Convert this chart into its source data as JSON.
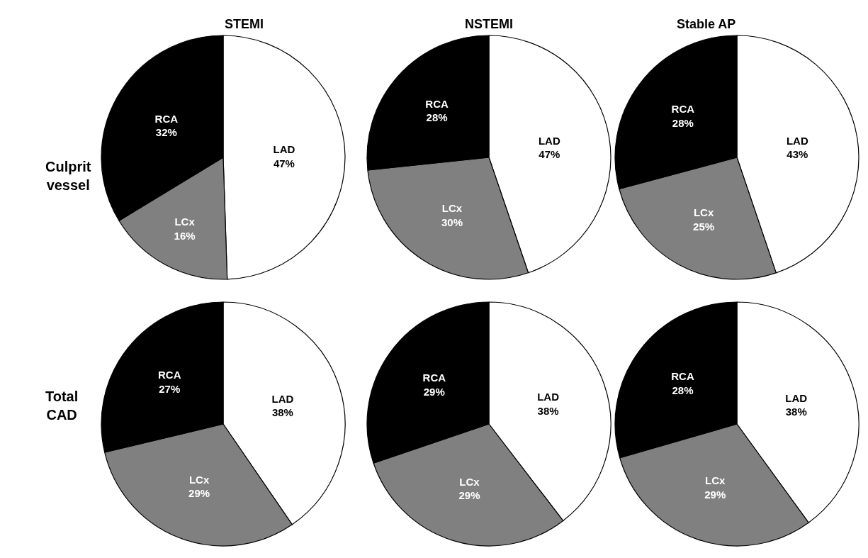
{
  "chart_data": [
    {
      "type": "pie",
      "title": "STEMI",
      "annotations": [
        "Culprit vessel"
      ],
      "categories": [
        "LAD",
        "LCx",
        "RCA"
      ],
      "values": [
        47,
        16,
        32
      ],
      "value_labels": [
        "47%",
        "16%",
        "32%"
      ],
      "colors": [
        "#ffffff",
        "#808080",
        "#000000"
      ]
    },
    {
      "type": "pie",
      "title": "NSTEMI",
      "categories": [
        "LAD",
        "LCx",
        "RCA"
      ],
      "values": [
        47,
        30,
        28
      ],
      "value_labels": [
        "47%",
        "30%",
        "28%"
      ],
      "colors": [
        "#ffffff",
        "#808080",
        "#000000"
      ]
    },
    {
      "type": "pie",
      "title": "Stable AP",
      "categories": [
        "LAD",
        "LCx",
        "RCA"
      ],
      "values": [
        43,
        25,
        28
      ],
      "value_labels": [
        "43%",
        "25%",
        "28%"
      ],
      "colors": [
        "#ffffff",
        "#808080",
        "#000000"
      ]
    },
    {
      "type": "pie",
      "annotations": [
        "Total CAD"
      ],
      "categories": [
        "LAD",
        "LCx",
        "RCA"
      ],
      "values": [
        38,
        29,
        27
      ],
      "value_labels": [
        "38%",
        "29%",
        "27%"
      ],
      "colors": [
        "#ffffff",
        "#808080",
        "#000000"
      ]
    },
    {
      "type": "pie",
      "categories": [
        "LAD",
        "LCx",
        "RCA"
      ],
      "values": [
        38,
        29,
        29
      ],
      "value_labels": [
        "38%",
        "29%",
        "29%"
      ],
      "colors": [
        "#ffffff",
        "#808080",
        "#000000"
      ]
    },
    {
      "type": "pie",
      "categories": [
        "LAD",
        "LCx",
        "RCA"
      ],
      "values": [
        38,
        29,
        28
      ],
      "value_labels": [
        "38%",
        "29%",
        "28%"
      ],
      "colors": [
        "#ffffff",
        "#808080",
        "#000000"
      ]
    }
  ]
}
